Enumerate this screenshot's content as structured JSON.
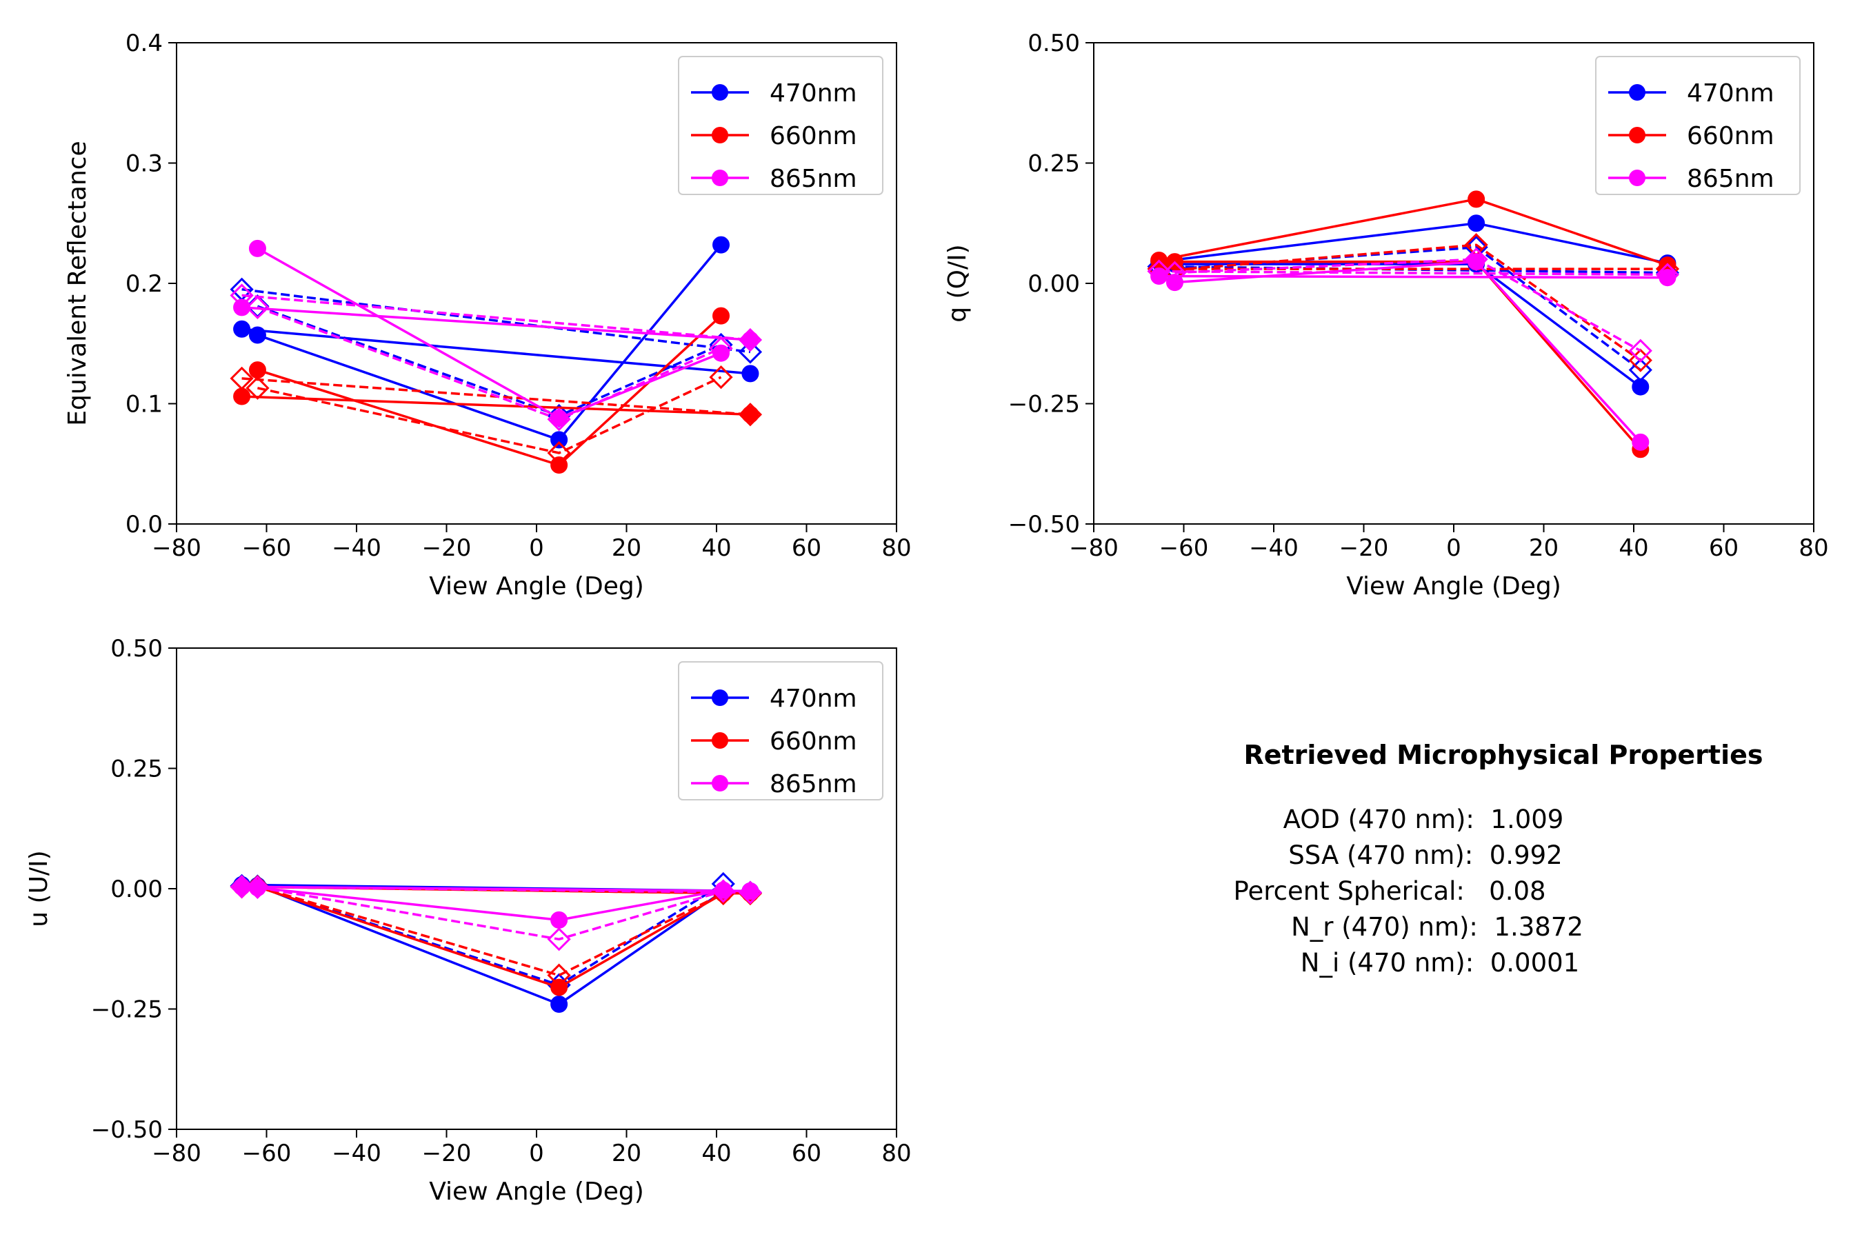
{
  "chart_data": [
    {
      "type": "line",
      "xlabel": "View Angle (Deg)",
      "ylabel": "Equivalent Reflectance",
      "xlim": [
        -80,
        80
      ],
      "ylim": [
        0.0,
        0.4
      ],
      "xticks": [
        -80,
        -60,
        -40,
        -20,
        0,
        20,
        40,
        60,
        80
      ],
      "xtick_labels": [
        "−80",
        "−60",
        "−40",
        "−20",
        "0",
        "20",
        "40",
        "60",
        "80"
      ],
      "yticks": [
        0.0,
        0.1,
        0.2,
        0.3,
        0.4
      ],
      "ytick_labels": [
        "0.0",
        "0.1",
        "0.2",
        "0.3",
        "0.4"
      ],
      "grid": false,
      "legend": {
        "placement": "top-right",
        "entries": [
          "470nm",
          "660nm",
          "865nm"
        ]
      },
      "series": [
        {
          "name": "470nm",
          "color": "#0000ff",
          "style": "solid",
          "marker": "circle",
          "segments": [
            {
              "x": [
                -65.5,
                47.5
              ],
              "y": [
                0.162,
                0.125
              ]
            },
            {
              "x": [
                -62.0,
                5.0,
                41.0
              ],
              "y": [
                0.157,
                0.07,
                0.232
              ]
            }
          ]
        },
        {
          "name": "470nm",
          "color": "#0000ff",
          "style": "dashed",
          "marker": "diamond-open",
          "segments": [
            {
              "x": [
                -65.5,
                47.5
              ],
              "y": [
                0.195,
                0.143
              ]
            },
            {
              "x": [
                -62.0,
                5.0,
                41.0
              ],
              "y": [
                0.181,
                0.09,
                0.149
              ]
            }
          ]
        },
        {
          "name": "660nm",
          "color": "#ff0000",
          "style": "solid",
          "marker": "circle",
          "segments": [
            {
              "x": [
                -65.5,
                47.5
              ],
              "y": [
                0.106,
                0.091
              ]
            },
            {
              "x": [
                -62.0,
                5.0,
                41.0
              ],
              "y": [
                0.128,
                0.049,
                0.173
              ]
            }
          ]
        },
        {
          "name": "660nm",
          "color": "#ff0000",
          "style": "dashed",
          "marker": "diamond-open",
          "segments": [
            {
              "x": [
                -65.5,
                47.5
              ],
              "y": [
                0.121,
                0.091
              ]
            },
            {
              "x": [
                -62.0,
                5.0,
                41.0
              ],
              "y": [
                0.113,
                0.059,
                0.122
              ]
            }
          ]
        },
        {
          "name": "865nm",
          "color": "#ff00ff",
          "style": "solid",
          "marker": "circle",
          "segments": [
            {
              "x": [
                -65.5,
                47.5
              ],
              "y": [
                0.18,
                0.153
              ]
            },
            {
              "x": [
                -62.0,
                5.0,
                41.0
              ],
              "y": [
                0.229,
                0.088,
                0.142
              ]
            }
          ]
        },
        {
          "name": "865nm",
          "color": "#ff00ff",
          "style": "dashed",
          "marker": "diamond-open",
          "segments": [
            {
              "x": [
                -65.5,
                47.5
              ],
              "y": [
                0.19,
                0.153
              ]
            },
            {
              "x": [
                -62.0,
                5.0,
                41.0
              ],
              "y": [
                0.18,
                0.087,
                0.146
              ]
            }
          ]
        }
      ]
    },
    {
      "type": "line",
      "xlabel": "View Angle (Deg)",
      "ylabel": "q (Q/I)",
      "xlim": [
        -80,
        80
      ],
      "ylim": [
        -0.5,
        0.5
      ],
      "xticks": [
        -80,
        -60,
        -40,
        -20,
        0,
        20,
        40,
        60,
        80
      ],
      "xtick_labels": [
        "−80",
        "−60",
        "−40",
        "−20",
        "0",
        "20",
        "40",
        "60",
        "80"
      ],
      "yticks": [
        -0.5,
        -0.25,
        0.0,
        0.25,
        0.5
      ],
      "ytick_labels": [
        "−0.50",
        "−0.25",
        "0.00",
        "0.25",
        "0.50"
      ],
      "grid": false,
      "legend": {
        "placement": "top-right",
        "entries": [
          "470nm",
          "660nm",
          "865nm"
        ]
      },
      "series": [
        {
          "name": "470nm",
          "color": "#0000ff",
          "style": "solid",
          "marker": "circle",
          "segments": [
            {
              "x": [
                -65.5,
                5.0,
                47.5
              ],
              "y": [
                0.045,
                0.125,
                0.042
              ]
            },
            {
              "x": [
                -62.0,
                5.0,
                41.5
              ],
              "y": [
                0.04,
                0.04,
                -0.215
              ]
            }
          ]
        },
        {
          "name": "470nm",
          "color": "#0000ff",
          "style": "dashed",
          "marker": "diamond-open",
          "segments": [
            {
              "x": [
                -65.5,
                47.5
              ],
              "y": [
                0.035,
                0.022
              ]
            },
            {
              "x": [
                -62.0,
                5.0,
                41.5
              ],
              "y": [
                0.03,
                0.075,
                -0.18
              ]
            }
          ]
        },
        {
          "name": "660nm",
          "color": "#ff0000",
          "style": "solid",
          "marker": "circle",
          "segments": [
            {
              "x": [
                -65.5,
                5.0,
                47.5
              ],
              "y": [
                0.048,
                0.175,
                0.038
              ]
            },
            {
              "x": [
                -62.0,
                5.0,
                41.5
              ],
              "y": [
                0.045,
                0.045,
                -0.345
              ]
            }
          ]
        },
        {
          "name": "660nm",
          "color": "#ff0000",
          "style": "dashed",
          "marker": "diamond-open",
          "segments": [
            {
              "x": [
                -65.5,
                47.5
              ],
              "y": [
                0.03,
                0.03
              ]
            },
            {
              "x": [
                -62.0,
                5.0,
                41.5
              ],
              "y": [
                0.028,
                0.08,
                -0.16
              ]
            }
          ]
        },
        {
          "name": "865nm",
          "color": "#ff00ff",
          "style": "solid",
          "marker": "circle",
          "segments": [
            {
              "x": [
                -65.5,
                47.5
              ],
              "y": [
                0.015,
                0.012
              ]
            },
            {
              "x": [
                -62.0,
                5.0,
                41.5
              ],
              "y": [
                0.002,
                0.045,
                -0.33
              ]
            }
          ]
        },
        {
          "name": "865nm",
          "color": "#ff00ff",
          "style": "dashed",
          "marker": "diamond-open",
          "segments": [
            {
              "x": [
                -65.5,
                47.5
              ],
              "y": [
                0.025,
                0.018
              ]
            },
            {
              "x": [
                -62.0,
                5.0,
                41.5
              ],
              "y": [
                0.022,
                0.05,
                -0.14
              ]
            }
          ]
        }
      ]
    },
    {
      "type": "line",
      "xlabel": "View Angle (Deg)",
      "ylabel": "u (U/I)",
      "xlim": [
        -80,
        80
      ],
      "ylim": [
        -0.5,
        0.5
      ],
      "xticks": [
        -80,
        -60,
        -40,
        -20,
        0,
        20,
        40,
        60,
        80
      ],
      "xtick_labels": [
        "−80",
        "−60",
        "−40",
        "−20",
        "0",
        "20",
        "40",
        "60",
        "80"
      ],
      "yticks": [
        -0.5,
        -0.25,
        0.0,
        0.25,
        0.5
      ],
      "ytick_labels": [
        "−0.50",
        "−0.25",
        "0.00",
        "0.25",
        "0.50"
      ],
      "grid": false,
      "legend": {
        "placement": "top-right",
        "entries": [
          "470nm",
          "660nm",
          "865nm"
        ]
      },
      "series": [
        {
          "name": "470nm",
          "color": "#0000ff",
          "style": "solid",
          "marker": "circle",
          "segments": [
            {
              "x": [
                -65.5,
                47.5
              ],
              "y": [
                0.008,
                -0.005
              ]
            },
            {
              "x": [
                -62.0,
                5.0,
                41.5
              ],
              "y": [
                0.006,
                -0.24,
                -0.005
              ]
            }
          ]
        },
        {
          "name": "470nm",
          "color": "#0000ff",
          "style": "dashed",
          "marker": "diamond-open",
          "segments": [
            {
              "x": [
                -65.5,
                47.5
              ],
              "y": [
                0.006,
                -0.008
              ]
            },
            {
              "x": [
                -62.0,
                5.0,
                41.5
              ],
              "y": [
                0.005,
                -0.2,
                0.01
              ]
            }
          ]
        },
        {
          "name": "660nm",
          "color": "#ff0000",
          "style": "solid",
          "marker": "circle",
          "segments": [
            {
              "x": [
                -65.5,
                47.5
              ],
              "y": [
                0.004,
                -0.01
              ]
            },
            {
              "x": [
                -62.0,
                5.0,
                41.5
              ],
              "y": [
                0.004,
                -0.205,
                -0.01
              ]
            }
          ]
        },
        {
          "name": "660nm",
          "color": "#ff0000",
          "style": "dashed",
          "marker": "diamond-open",
          "segments": [
            {
              "x": [
                -65.5,
                47.5
              ],
              "y": [
                0.004,
                -0.01
              ]
            },
            {
              "x": [
                -62.0,
                5.0,
                41.5
              ],
              "y": [
                0.004,
                -0.18,
                -0.01
              ]
            }
          ]
        },
        {
          "name": "865nm",
          "color": "#ff00ff",
          "style": "solid",
          "marker": "circle",
          "segments": [
            {
              "x": [
                -65.5,
                47.5
              ],
              "y": [
                0.004,
                -0.005
              ]
            },
            {
              "x": [
                -62.0,
                5.0,
                41.5
              ],
              "y": [
                0.002,
                -0.065,
                -0.003
              ]
            }
          ]
        },
        {
          "name": "865nm",
          "color": "#ff00ff",
          "style": "dashed",
          "marker": "diamond-open",
          "segments": [
            {
              "x": [
                -65.5,
                47.5
              ],
              "y": [
                0.004,
                -0.008
              ]
            },
            {
              "x": [
                -62.0,
                5.0,
                41.5
              ],
              "y": [
                0.003,
                -0.105,
                -0.005
              ]
            }
          ]
        }
      ]
    }
  ],
  "properties_panel": {
    "title": "Retrieved Microphysical Properties",
    "lines": [
      "AOD (470 nm):  1.009",
      "SSA (470 nm):  0.992",
      "Percent Spherical:   0.08",
      "N_r (470) nm):  1.3872",
      "N_i (470 nm):  0.0001"
    ]
  }
}
